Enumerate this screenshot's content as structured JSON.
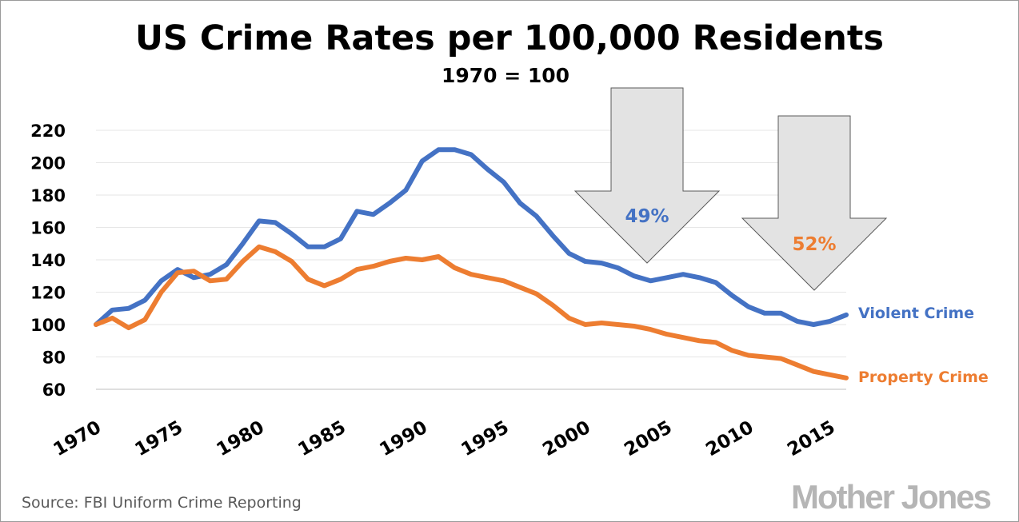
{
  "chart_data": {
    "type": "line",
    "title": "US Crime Rates per 100,000 Residents",
    "subtitle": "1970 = 100",
    "ylim": [
      60,
      220
    ],
    "yticks": [
      60,
      80,
      100,
      120,
      140,
      160,
      180,
      200,
      220
    ],
    "xlim": [
      1970,
      2016
    ],
    "xticks": [
      1970,
      1975,
      1980,
      1985,
      1990,
      1995,
      2000,
      2005,
      2010,
      2015
    ],
    "grid": true,
    "colors": {
      "violent": "#4472c4",
      "property": "#ed7d31",
      "arrow_fill": "#e3e3e3",
      "arrow_stroke": "#595959"
    },
    "x": [
      1970,
      1971,
      1972,
      1973,
      1974,
      1975,
      1976,
      1977,
      1978,
      1979,
      1980,
      1981,
      1982,
      1983,
      1984,
      1985,
      1986,
      1987,
      1988,
      1989,
      1990,
      1991,
      1992,
      1993,
      1994,
      1995,
      1996,
      1997,
      1998,
      1999,
      2000,
      2001,
      2002,
      2003,
      2004,
      2005,
      2006,
      2007,
      2008,
      2009,
      2010,
      2011,
      2012,
      2013,
      2014,
      2015,
      2016
    ],
    "series": [
      {
        "name": "Violent Crime",
        "color": "#4472c4",
        "values": [
          100,
          109,
          110,
          115,
          127,
          134,
          129,
          131,
          137,
          150,
          164,
          163,
          156,
          148,
          148,
          153,
          170,
          168,
          175,
          183,
          201,
          208,
          208,
          205,
          196,
          188,
          175,
          167,
          155,
          144,
          139,
          138,
          135,
          130,
          127,
          129,
          131,
          129,
          126,
          118,
          111,
          107,
          107,
          102,
          100,
          102,
          106
        ]
      },
      {
        "name": "Property Crime",
        "color": "#ed7d31",
        "values": [
          100,
          104,
          98,
          103,
          120,
          132,
          133,
          127,
          128,
          139,
          148,
          145,
          139,
          128,
          124,
          128,
          134,
          136,
          139,
          141,
          140,
          142,
          135,
          131,
          129,
          127,
          123,
          119,
          112,
          104,
          100,
          101,
          100,
          99,
          97,
          94,
          92,
          90,
          89,
          84,
          81,
          80,
          79,
          75,
          71,
          69,
          67
        ]
      }
    ],
    "annotations": [
      {
        "label": "49%",
        "color": "#4472c4"
      },
      {
        "label": "52%",
        "color": "#ed7d31"
      }
    ],
    "source": "Source: FBI Uniform Crime Reporting",
    "brand": "Mother Jones"
  }
}
